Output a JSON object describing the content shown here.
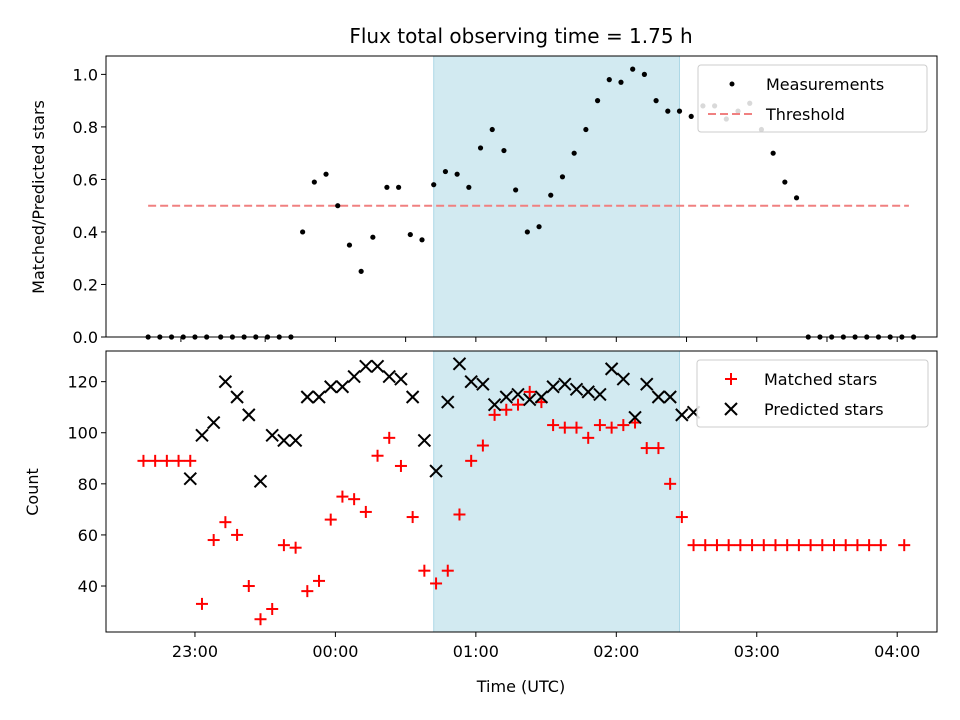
{
  "chart_data": [
    {
      "type": "scatter",
      "title": "Flux total observing time = 1.75 h",
      "xlabel": "",
      "ylabel": "Matched/Predicted stars",
      "ylim": [
        0,
        1.07
      ],
      "xlim": [
        "22:22",
        "04:17"
      ],
      "x_ticks": [
        "22:54",
        "23:30",
        "00:00",
        "00:30",
        "01:00",
        "01:30",
        "02:00",
        "02:30",
        "03:00",
        "03:30",
        "04:00"
      ],
      "x_tick_labels_shown": false,
      "y_ticks": [
        "0.0",
        "0.2",
        "0.4",
        "0.6",
        "0.8",
        "1.0"
      ],
      "highlight": {
        "start": "00:42",
        "end": "02:27",
        "color": "#add8e6"
      },
      "legend": {
        "position": "top-right",
        "entries": [
          "Measurements",
          "Threshold"
        ]
      },
      "series": [
        {
          "name": "Measurements",
          "color": "#000000",
          "marker": "dot",
          "x": [
            "22:40",
            "22:45",
            "22:50",
            "22:55",
            "23:00",
            "23:05",
            "23:11",
            "23:16",
            "23:21",
            "23:26",
            "23:31",
            "23:36",
            "23:41",
            "23:46",
            "23:51",
            "23:56",
            "00:01",
            "00:06",
            "00:11",
            "00:16",
            "00:22",
            "00:27",
            "00:32",
            "00:37",
            "00:42",
            "00:47",
            "00:52",
            "00:57",
            "01:02",
            "01:07",
            "01:12",
            "01:17",
            "01:22",
            "01:27",
            "01:32",
            "01:37",
            "01:42",
            "01:47",
            "01:52",
            "01:57",
            "02:02",
            "02:07",
            "02:12",
            "02:17",
            "02:22",
            "02:27",
            "02:32",
            "02:37",
            "02:42",
            "02:47",
            "02:52",
            "02:57",
            "03:02",
            "03:07",
            "03:12",
            "03:17",
            "03:22",
            "03:27",
            "03:32",
            "03:37",
            "03:42",
            "03:47",
            "03:52",
            "03:57",
            "04:02",
            "04:07"
          ],
          "y": [
            0,
            0,
            0,
            0,
            0,
            0,
            0,
            0,
            0,
            0,
            0,
            0,
            0,
            0.4,
            0.59,
            0.62,
            0.5,
            0.35,
            0.25,
            0.38,
            0.57,
            0.57,
            0.39,
            0.37,
            0.58,
            0.63,
            0.62,
            0.57,
            0.72,
            0.79,
            0.71,
            0.56,
            0.4,
            0.42,
            0.54,
            0.61,
            0.7,
            0.79,
            0.9,
            0.98,
            0.97,
            1.02,
            1.0,
            0.9,
            0.86,
            0.86,
            0.84,
            0.88,
            0.88,
            0.83,
            0.86,
            0.89,
            0.79,
            0.7,
            0.59,
            0.53,
            0,
            0,
            0,
            0,
            0,
            0,
            0,
            0,
            0,
            0
          ]
        },
        {
          "name": "Threshold",
          "color": "#f08080",
          "style": "dashed",
          "x": [
            "22:40",
            "04:05"
          ],
          "y": [
            0.5,
            0.5
          ]
        }
      ]
    },
    {
      "type": "scatter",
      "title": "",
      "xlabel": "Time (UTC)",
      "ylabel": "Count",
      "ylim": [
        22,
        132
      ],
      "xlim": [
        "22:22",
        "04:17"
      ],
      "x_ticks": [
        "23:00",
        "00:00",
        "01:00",
        "02:00",
        "03:00",
        "04:00"
      ],
      "x_tick_labels": [
        "23:00",
        "00:00",
        "01:00",
        "02:00",
        "03:00",
        "04:00"
      ],
      "y_ticks": [
        "40",
        "60",
        "80",
        "100",
        "120"
      ],
      "highlight": {
        "start": "00:42",
        "end": "02:27",
        "color": "#add8e6"
      },
      "legend": {
        "position": "top-right",
        "entries": [
          "Matched stars",
          "Predicted stars"
        ]
      },
      "series": [
        {
          "name": "Matched stars",
          "color": "#ff0000",
          "marker": "plus",
          "x": [
            "22:38",
            "22:43",
            "22:48",
            "22:53",
            "22:58",
            "23:03",
            "23:08",
            "23:13",
            "23:18",
            "23:23",
            "23:28",
            "23:33",
            "23:38",
            "23:43",
            "23:48",
            "23:53",
            "23:58",
            "00:03",
            "00:08",
            "00:13",
            "00:18",
            "00:23",
            "00:28",
            "00:33",
            "00:38",
            "00:43",
            "00:48",
            "00:53",
            "00:58",
            "01:03",
            "01:08",
            "01:13",
            "01:18",
            "01:23",
            "01:28",
            "01:33",
            "01:38",
            "01:43",
            "01:48",
            "01:53",
            "01:58",
            "02:03",
            "02:08",
            "02:13",
            "02:18",
            "02:23",
            "02:28",
            "02:33",
            "02:38",
            "02:43",
            "02:48",
            "02:53",
            "02:58",
            "03:03",
            "03:08",
            "03:13",
            "03:18",
            "03:23",
            "03:28",
            "03:33",
            "03:38",
            "03:43",
            "03:48",
            "03:53",
            "04:03"
          ],
          "y": [
            89,
            89,
            89,
            89,
            89,
            33,
            58,
            65,
            60,
            40,
            27,
            31,
            56,
            55,
            38,
            42,
            66,
            75,
            74,
            69,
            91,
            98,
            87,
            67,
            46,
            41,
            46,
            68,
            89,
            95,
            107,
            109,
            111,
            116,
            112,
            103,
            102,
            102,
            98,
            103,
            102,
            103,
            104,
            94,
            94,
            80,
            67,
            56,
            56,
            56,
            56,
            56,
            56,
            56,
            56,
            56,
            56,
            56,
            56,
            56,
            56,
            56,
            56,
            56,
            56
          ]
        },
        {
          "name": "Predicted stars",
          "color": "#000000",
          "marker": "x",
          "x": [
            "22:58",
            "23:03",
            "23:08",
            "23:13",
            "23:18",
            "23:23",
            "23:28",
            "23:33",
            "23:38",
            "23:43",
            "23:48",
            "23:53",
            "23:58",
            "00:03",
            "00:08",
            "00:13",
            "00:18",
            "00:23",
            "00:28",
            "00:33",
            "00:38",
            "00:43",
            "00:48",
            "00:53",
            "00:58",
            "01:03",
            "01:08",
            "01:13",
            "01:18",
            "01:23",
            "01:28",
            "01:33",
            "01:38",
            "01:43",
            "01:48",
            "01:53",
            "01:58",
            "02:03",
            "02:08",
            "02:13",
            "02:18",
            "02:23",
            "02:28",
            "02:33"
          ],
          "y": [
            82,
            99,
            104,
            120,
            114,
            107,
            81,
            99,
            97,
            97,
            114,
            114,
            118,
            118,
            122,
            126,
            126,
            122,
            121,
            114,
            97,
            85,
            112,
            127,
            120,
            119,
            111,
            114,
            115,
            113,
            114,
            118,
            119,
            117,
            116,
            115,
            125,
            121,
            106,
            119,
            114,
            114,
            107,
            108
          ]
        }
      ]
    }
  ]
}
